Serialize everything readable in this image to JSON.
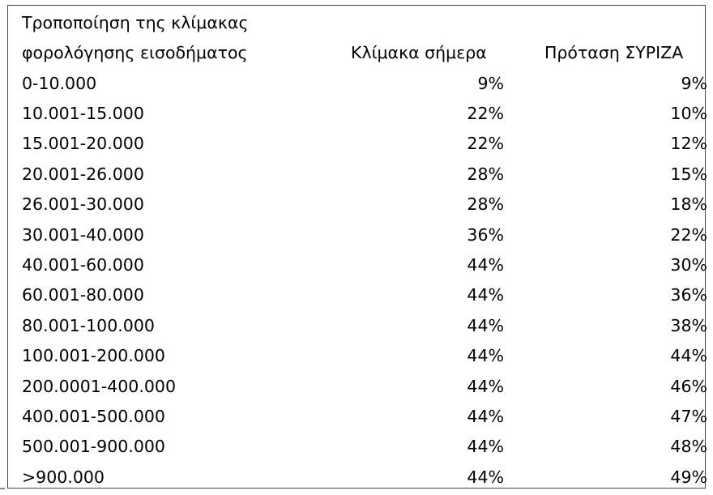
{
  "chart_data": {
    "type": "table",
    "columns": [
      "Τροποποίηση της κλίμακας φορολόγησης εισοδήματος",
      "Κλίμακα σήμερα",
      "Πρόταση ΣΥΡΙΖΑ"
    ],
    "header": {
      "col1_line1": "Τροποποίηση της κλίμακας",
      "col1_line2": "φορολόγησης εισοδήματος",
      "col2": "Κλίμακα σήμερα",
      "col3": "Πρόταση ΣΥΡΙΖΑ"
    },
    "rows": [
      {
        "bracket": "0-10.000",
        "current": "9%",
        "proposal": "9%"
      },
      {
        "bracket": "10.001-15.000",
        "current": "22%",
        "proposal": "10%"
      },
      {
        "bracket": "15.001-20.000",
        "current": "22%",
        "proposal": "12%"
      },
      {
        "bracket": "20.001-26.000",
        "current": "28%",
        "proposal": "15%"
      },
      {
        "bracket": "26.001-30.000",
        "current": "28%",
        "proposal": "18%"
      },
      {
        "bracket": "30.001-40.000",
        "current": "36%",
        "proposal": "22%"
      },
      {
        "bracket": "40.001-60.000",
        "current": "44%",
        "proposal": "30%"
      },
      {
        "bracket": "60.001-80.000",
        "current": "44%",
        "proposal": "36%"
      },
      {
        "bracket": "80.001-100.000",
        "current": "44%",
        "proposal": "38%"
      },
      {
        "bracket": "100.001-200.000",
        "current": "44%",
        "proposal": "44%"
      },
      {
        "bracket": "200.0001-400.000",
        "current": "44%",
        "proposal": "46%"
      },
      {
        "bracket": "400.001-500.000",
        "current": "44%",
        "proposal": "47%"
      },
      {
        "bracket": "500.001-900.000",
        "current": "44%",
        "proposal": "48%"
      },
      {
        "bracket": ">900.000",
        "current": "44%",
        "proposal": "49%"
      }
    ]
  },
  "colors": {
    "border": "#444444",
    "text": "#000000",
    "background": "#ffffff"
  }
}
